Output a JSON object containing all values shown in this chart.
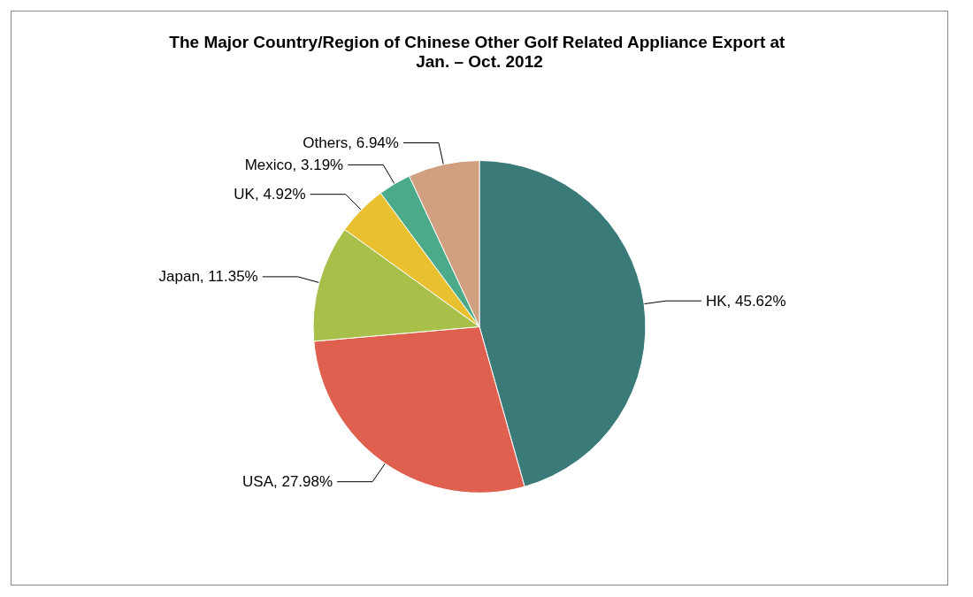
{
  "chart_data": {
    "type": "pie",
    "title": "The Major Country/Region of Chinese Other Golf Related Appliance Export at Jan. – Oct. 2012",
    "categories": [
      "HK",
      "USA",
      "Japan",
      "UK",
      "Mexico",
      "Others"
    ],
    "values": [
      45.62,
      27.98,
      11.35,
      4.92,
      3.19,
      6.94
    ],
    "value_labels": [
      "45.62%",
      "27.98%",
      "11.35%",
      "4.92%",
      "3.19%",
      "6.94%"
    ],
    "colors": [
      "#3a7a78",
      "#e06050",
      "#a8c04a",
      "#e8c030",
      "#4aaa8a",
      "#d0a080"
    ],
    "legend": false
  }
}
